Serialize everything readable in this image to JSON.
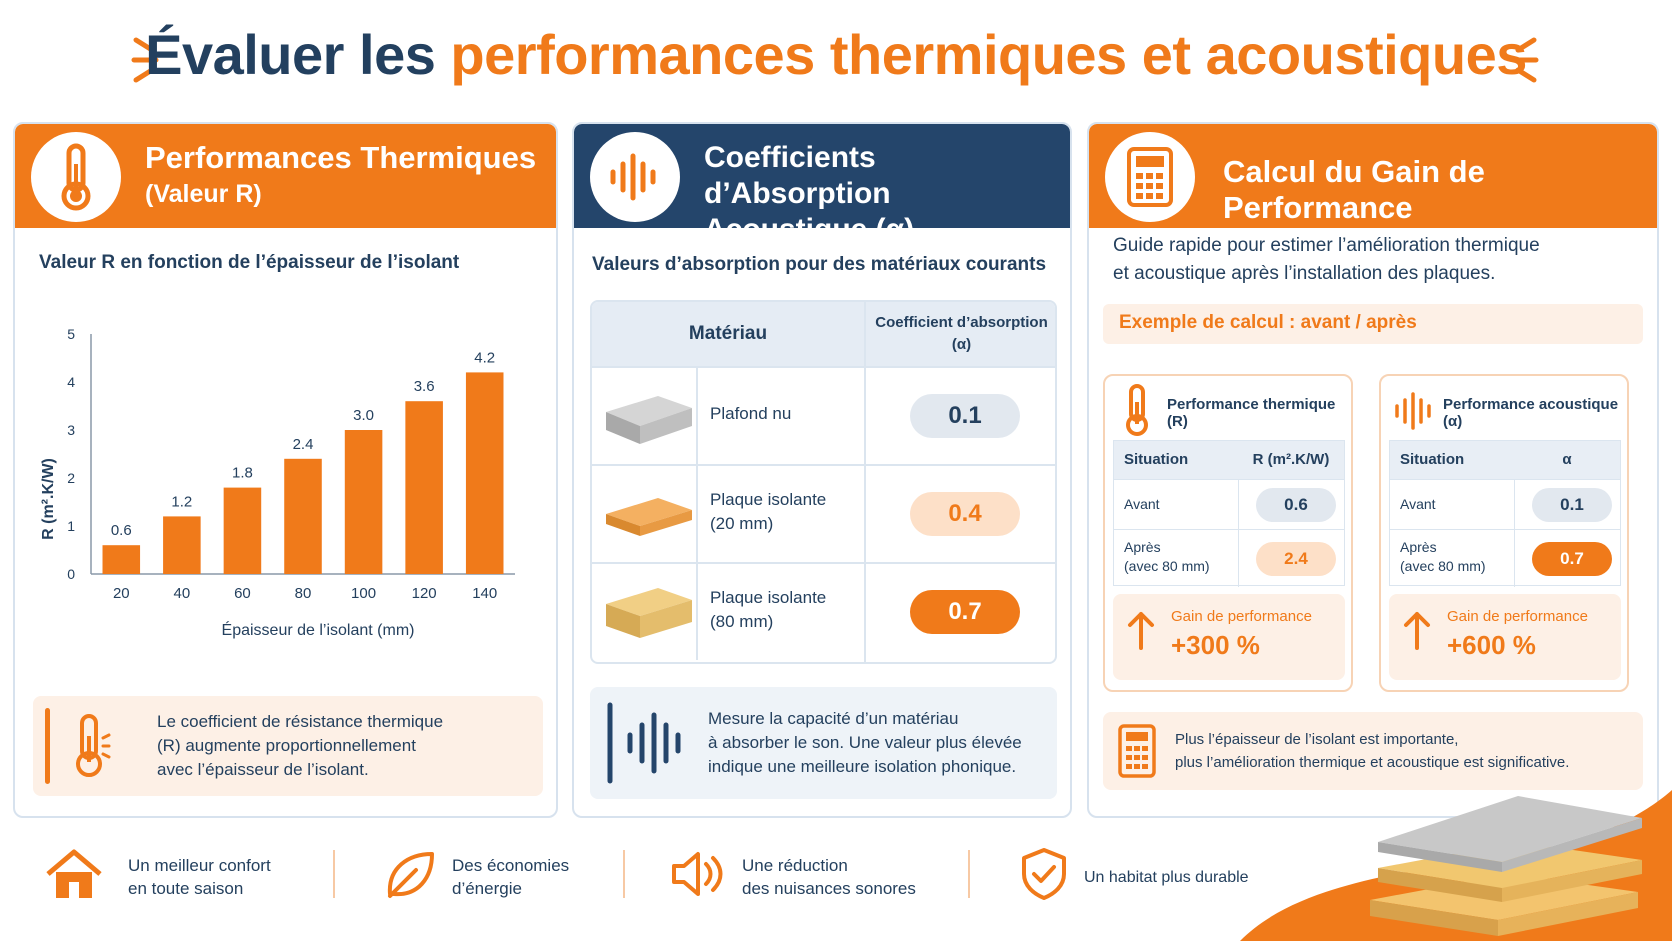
{
  "page": {
    "title_part1": "Évaluer les",
    "title_part2": "performances thermiques et acoustiques"
  },
  "card_thermal": {
    "title": "Performances Thermiques",
    "subtitle": "(Valeur R)",
    "chart_title": "Valeur R en fonction de l’épaisseur de l’isolant",
    "note": [
      "Le coefficient de résistance thermique",
      "(R) augmente proportionnellement",
      "avec l’épaisseur de l’isolant."
    ]
  },
  "chart_data": {
    "type": "bar",
    "title": "Valeur R en fonction de l’épaisseur de l’isolant",
    "xlabel": "Épaisseur de l’isolant (mm)",
    "ylabel": "R (m².K/W)",
    "categories": [
      "20",
      "40",
      "60",
      "80",
      "100",
      "120",
      "140"
    ],
    "values": [
      0.6,
      1.2,
      1.8,
      2.4,
      3.0,
      3.6,
      4.2
    ],
    "value_labels": [
      "0.6",
      "1.2",
      "1.8",
      "2.4",
      "3.0",
      "3.6",
      "4.2"
    ],
    "ylim": [
      0,
      5
    ],
    "yticks": [
      "0",
      "1",
      "2",
      "3",
      "4",
      "5"
    ],
    "color": "#f07a1a"
  },
  "card_acoustic": {
    "title_line1": "Coefficients d’Absorption",
    "title_line2": "Acoustique (α)",
    "table_title": "Valeurs d’absorption pour des matériaux courants",
    "col_material": "Matériau",
    "col_coef_line1": "Coefficient d’absorption",
    "col_coef_line2": "(α)",
    "rows": [
      {
        "name_line1": "Plafond nu",
        "name_line2": "",
        "value": "0.1",
        "style": "grey"
      },
      {
        "name_line1": "Plaque isolante",
        "name_line2": "(20 mm)",
        "value": "0.4",
        "style": "peach"
      },
      {
        "name_line1": "Plaque isolante",
        "name_line2": "(80 mm)",
        "value": "0.7",
        "style": "orange"
      }
    ],
    "note": [
      "Mesure la capacité d’un matériau",
      "à absorber le son. Une valeur plus élevée",
      "indique une meilleure isolation phonique."
    ]
  },
  "card_calc": {
    "title": "Calcul du Gain de Performance",
    "intro": [
      "Guide rapide pour estimer l’amélioration thermique",
      "et acoustique après l’installation des plaques."
    ],
    "example": "Exemple de calcul : avant / après",
    "thermal": {
      "title": "Performance thermique (R)",
      "col1": "Situation",
      "col2": "R (m².K/W)",
      "before_label": "Avant",
      "before_value": "0.6",
      "after_label1": "Après",
      "after_label2": "(avec 80 mm)",
      "after_value": "2.4",
      "gain_label": "Gain de performance",
      "gain_value": "+300 %"
    },
    "acoustic": {
      "title": "Performance acoustique (α)",
      "col1": "Situation",
      "col2": "α",
      "before_label": "Avant",
      "before_value": "0.1",
      "after_label1": "Après",
      "after_label2": "(avec 80 mm)",
      "after_value": "0.7",
      "gain_label": "Gain de performance",
      "gain_value": "+600 %"
    },
    "note": [
      "Plus l’épaisseur de l’isolant est importante,",
      "plus l’amélioration thermique et acoustique est significative."
    ]
  },
  "footer": [
    {
      "icon": "house-icon",
      "line1": "Un meilleur confort",
      "line2": "en toute saison"
    },
    {
      "icon": "leaf-icon",
      "line1": "Des économies",
      "line2": "d’énergie"
    },
    {
      "icon": "speaker-icon",
      "line1": "Une réduction",
      "line2": "des nuisances sonores"
    },
    {
      "icon": "shield-check-icon",
      "line1": "Un habitat plus durable",
      "line2": ""
    }
  ],
  "colors": {
    "accent": "#f07a1a",
    "navy": "#24456b",
    "text": "#24405e",
    "peach": "#fdf0e6"
  }
}
